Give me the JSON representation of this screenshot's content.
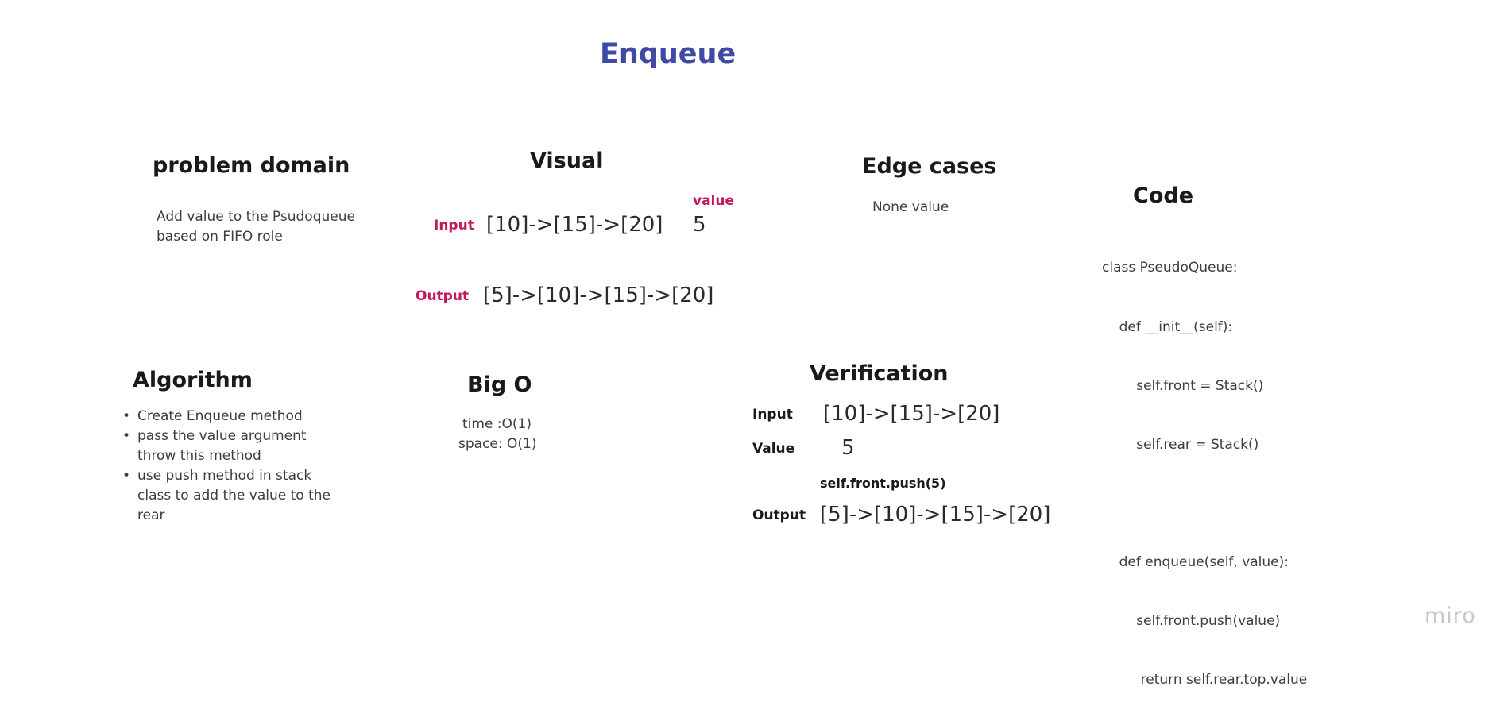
{
  "title": "Enqueue",
  "problem_domain": {
    "heading": "problem domain",
    "lines": [
      "Add value to the Psudoqueue",
      "based on FIFO role"
    ]
  },
  "visual": {
    "heading": "Visual",
    "input_label": "Input",
    "input_value": "[10]->[15]->[20]",
    "value_label": "value",
    "value": "5",
    "output_label": "Output",
    "output_value": "[5]->[10]->[15]->[20]"
  },
  "edge_cases": {
    "heading": "Edge cases",
    "text": "None value"
  },
  "code": {
    "heading": "Code",
    "lines": [
      "class PseudoQueue:",
      "    def __init__(self):",
      "        self.front = Stack()",
      "        self.rear = Stack()",
      "",
      "    def enqueue(self, value):",
      "        self.front.push(value)",
      "         return self.rear.top.value"
    ]
  },
  "algorithm": {
    "heading": "Algorithm",
    "items": [
      "Create Enqueue method",
      "pass the value argument throw this method",
      "use push method in stack class to add the value to the rear"
    ]
  },
  "big_o": {
    "heading": "Big O",
    "time": "time :O(1)",
    "space": "space: O(1)"
  },
  "verification": {
    "heading": "Verification",
    "input_label": "Input",
    "input_value": "[10]->[15]->[20]",
    "value_label": "Value",
    "value": "5",
    "call": "self.front.push(5)",
    "output_label": "Output",
    "output_value": "[5]->[10]->[15]->[20]"
  },
  "watermark": "miro"
}
